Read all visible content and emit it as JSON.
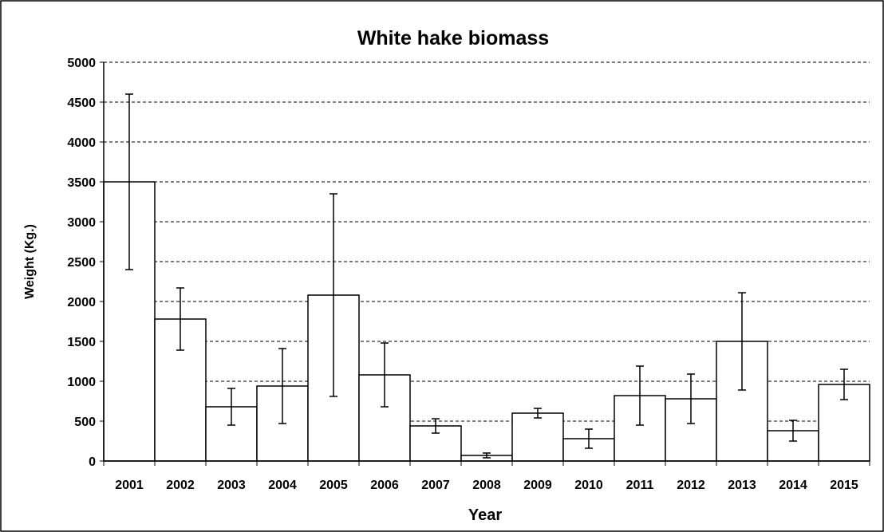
{
  "chart_data": {
    "type": "bar",
    "title": "White hake biomass",
    "x_label": "Year",
    "y_label": "Weight (Kg.)",
    "categories": [
      "2001",
      "2002",
      "2003",
      "2004",
      "2005",
      "2006",
      "2007",
      "2008",
      "2009",
      "2010",
      "2011",
      "2012",
      "2013",
      "2014",
      "2015"
    ],
    "values": [
      3500,
      1780,
      680,
      940,
      2080,
      1080,
      440,
      70,
      600,
      280,
      820,
      780,
      1500,
      380,
      960
    ],
    "errors": [
      1100,
      390,
      230,
      470,
      1270,
      400,
      90,
      30,
      60,
      120,
      370,
      310,
      610,
      130,
      190
    ],
    "color": "#ffffff",
    "ylim": [
      0,
      5000
    ],
    "yticks": [
      0,
      500,
      1000,
      1500,
      2000,
      2500,
      3000,
      3500,
      4000,
      4500,
      5000
    ],
    "grid": true
  }
}
